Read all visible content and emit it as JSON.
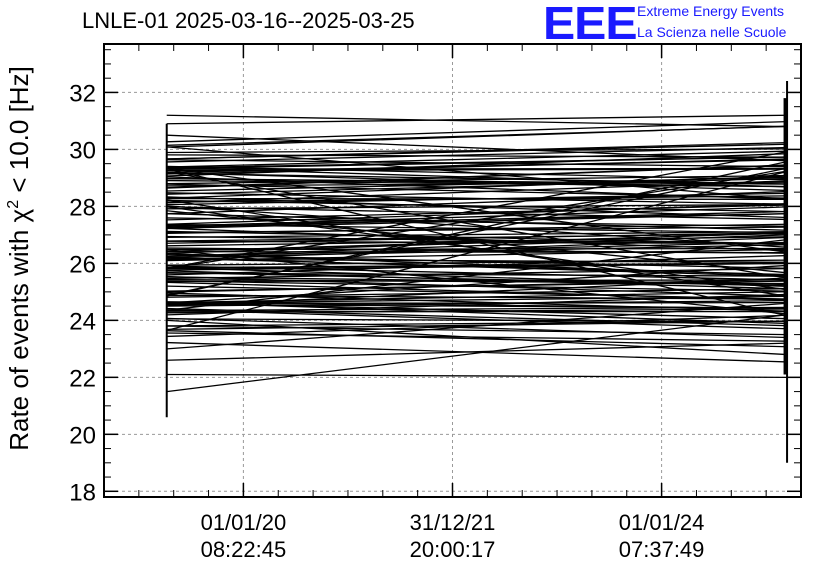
{
  "header": {
    "title": "LNLE-01 2025-03-16--2025-03-25",
    "logo_text": "EEE",
    "logo_line1": "Extreme Energy Events",
    "logo_line2": "La Scienza nelle Scuole"
  },
  "colors": {
    "logo": "#1a1aff",
    "line": "#000000",
    "grid": "#9a9a9a"
  },
  "chart_data": {
    "type": "line",
    "title": "LNLE-01 2025-03-16--2025-03-25",
    "xlabel": "",
    "ylabel_prefix": "Rate of events with ",
    "ylabel_chi": "χ",
    "ylabel_exp": "2",
    "ylabel_suffix": " < 10.0 [Hz]",
    "ylim": [
      17.8,
      33.7
    ],
    "yticks": [
      18,
      20,
      22,
      24,
      26,
      28,
      30,
      32
    ],
    "xlim": [
      0,
      1
    ],
    "xticks": [
      {
        "pos": 0.2,
        "date": "01/01/20",
        "time": "08:22:45"
      },
      {
        "pos": 0.5,
        "date": "31/12/21",
        "time": "20:00:17"
      },
      {
        "pos": 0.8,
        "date": "01/01/24",
        "time": "07:37:49"
      }
    ],
    "grid": true,
    "series_count": 140,
    "x_start": 0.09,
    "x_end": 0.98,
    "left_vertical_range": [
      20.6,
      30.9
    ],
    "right_vertical_range": [
      19.0,
      32.4
    ],
    "main_band_range": [
      22.6,
      30.5
    ],
    "outlier_lines": [
      {
        "start": 31.2,
        "end": 30.8
      },
      {
        "start": 30.9,
        "end": 31.2
      },
      {
        "start": 21.5,
        "end": 24.2
      },
      {
        "start": 22.1,
        "end": 22.0
      },
      {
        "start": 22.6,
        "end": 23.2
      },
      {
        "start": 23.0,
        "end": 24.6
      },
      {
        "start": 24.0,
        "end": 22.8
      },
      {
        "start": 30.5,
        "end": 29.6
      }
    ]
  }
}
